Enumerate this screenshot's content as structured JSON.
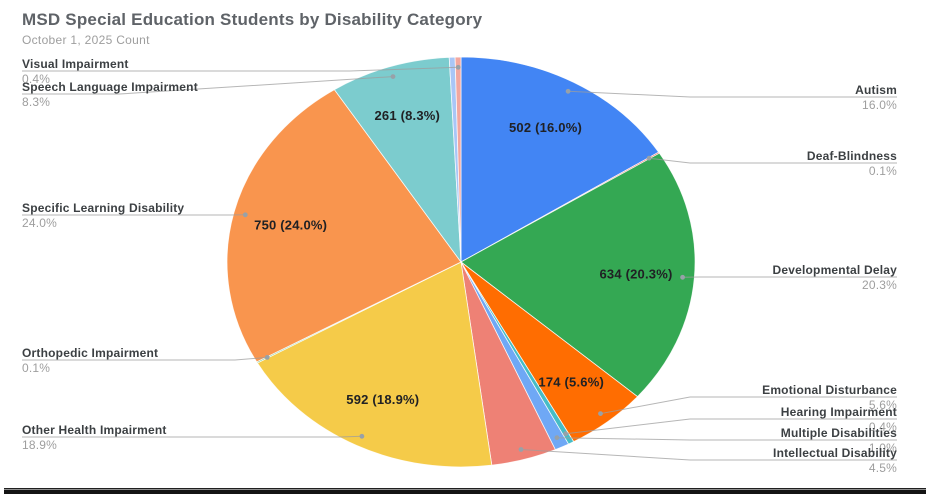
{
  "chart_data": {
    "type": "pie",
    "title": "MSD Special Education Students by Disability Category",
    "subtitle": "October 1, 2025 Count",
    "label_style": "outside callouts with percent; inside labels show count (percent)",
    "clockwise_from_top": true,
    "slices": [
      {
        "label": "Autism",
        "count": 502,
        "pct": 16.0,
        "pct_text": "16.0%",
        "value_text": "502 (16.0%)",
        "color": "#4285F4",
        "callout": "right"
      },
      {
        "label": "Deaf-Blindness",
        "pct": 0.1,
        "pct_text": "0.1%",
        "color": "#EA4335",
        "callout": "right"
      },
      {
        "label": "Developmental Delay",
        "count": 634,
        "pct": 20.3,
        "pct_text": "20.3%",
        "value_text": "634 (20.3%)",
        "color": "#34A853",
        "callout": "right"
      },
      {
        "label": "Emotional Disturbance",
        "count": 174,
        "pct": 5.6,
        "pct_text": "5.6%",
        "value_text": "174 (5.6%)",
        "color": "#FF6D01",
        "callout": "right"
      },
      {
        "label": "Hearing Impairment",
        "pct": 0.4,
        "pct_text": "0.4%",
        "color": "#46BDC6",
        "callout": "right"
      },
      {
        "label": "Multiple Disabilities",
        "pct": 1.0,
        "pct_text": "1.0%",
        "color": "#6FA8F5",
        "callout": "right"
      },
      {
        "label": "Intellectual Disability",
        "pct": 4.5,
        "pct_text": "4.5%",
        "color": "#EE8175",
        "callout": "right"
      },
      {
        "label": "Other Health Impairment",
        "count": 592,
        "pct": 18.9,
        "pct_text": "18.9%",
        "value_text": "592 (18.9%)",
        "color": "#F5CB49",
        "callout": "left"
      },
      {
        "label": "Orthopedic Impairment",
        "pct": 0.1,
        "pct_text": "0.1%",
        "color": "#71C287",
        "callout": "left"
      },
      {
        "label": "Specific Learning Disability",
        "count": 750,
        "pct": 24.0,
        "pct_text": "24.0%",
        "value_text": "750 (24.0%)",
        "color": "#F9954E",
        "callout": "left"
      },
      {
        "label": "Speech Language Impairment",
        "count": 261,
        "pct": 8.3,
        "pct_text": "8.3%",
        "value_text": "261 (8.3%)",
        "color": "#7CCCCE",
        "callout": "left"
      },
      {
        "label": "",
        "pct": 0.4,
        "color": "#A9C6F7"
      },
      {
        "label": "Visual Impairment",
        "pct": 0.4,
        "pct_text": "0.4%",
        "color": "#F2A79F",
        "callout": "left"
      }
    ]
  }
}
